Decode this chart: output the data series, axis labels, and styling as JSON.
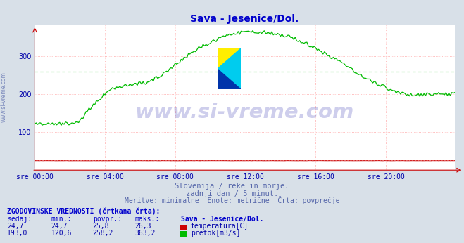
{
  "title": "Sava - Jesenice/Dol.",
  "title_color": "#0000cc",
  "bg_color": "#d8e0e8",
  "plot_bg_color": "#ffffff",
  "grid_color": "#ffaaaa",
  "grid_color_v": "#ddcccc",
  "xticklabels": [
    "sre 00:00",
    "sre 04:00",
    "sre 08:00",
    "sre 12:00",
    "sre 16:00",
    "sre 20:00"
  ],
  "yticks": [
    100,
    200,
    300
  ],
  "ylim": [
    0,
    380
  ],
  "xlim_max": 287,
  "flow_color": "#00bb00",
  "flow_avg": 258.2,
  "temp_color": "#cc0000",
  "temp_avg": 25.8,
  "watermark_text": "www.si-vreme.com",
  "watermark_color": "#2222aa",
  "watermark_alpha": 0.22,
  "subtitle1": "Slovenija / reke in morje.",
  "subtitle2": "zadnji dan / 5 minut.",
  "subtitle3": "Meritve: minimalne  Enote: metrične  Črta: povprečje",
  "subtitle_color": "#5566aa",
  "legend_title": "ZGODOVINSKE VREDNOSTI (črtkana črta):",
  "legend_header": [
    "sedaj:",
    "min.:",
    "povpr.:",
    "maks.:",
    "Sava - Jesenice/Dol."
  ],
  "legend_row1": [
    "24,7",
    "24,7",
    "25,8",
    "26,3",
    "temperatura[C]"
  ],
  "legend_row2": [
    "193,0",
    "120,6",
    "258,2",
    "363,2",
    "pretok[m3/s]"
  ],
  "legend_color": "#0000aa",
  "legend_header_color": "#0000cc",
  "tick_color": "#0000aa",
  "axis_color": "#cc0000",
  "sidebar_text": "www.si-vreme.com",
  "sidebar_color": "#5566aa"
}
